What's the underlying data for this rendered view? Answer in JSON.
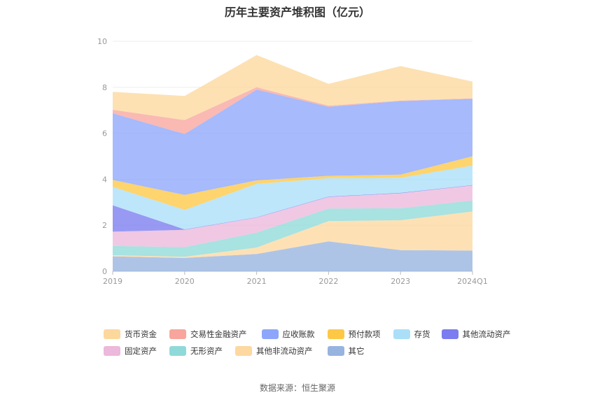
{
  "chart_data": {
    "type": "area",
    "stacked": true,
    "title": "历年主要资产堆积图（亿元）",
    "categories": [
      "2019",
      "2020",
      "2021",
      "2022",
      "2023",
      "2024Q1"
    ],
    "ylim": [
      0,
      10
    ],
    "yticks": [
      "0",
      "2",
      "4",
      "6",
      "8",
      "10"
    ],
    "grid": true,
    "legend_position": "bottom",
    "series": [
      {
        "name": "其它",
        "color": "#97b4e0",
        "values": [
          0.65,
          0.58,
          0.75,
          1.3,
          0.92,
          0.9
        ]
      },
      {
        "name": "其他非流动资产",
        "color": "#fdd8a0",
        "values": [
          0.05,
          0.05,
          0.28,
          0.88,
          1.3,
          1.7
        ]
      },
      {
        "name": "无形资产",
        "color": "#8fdad9",
        "values": [
          0.4,
          0.42,
          0.65,
          0.55,
          0.52,
          0.48
        ]
      },
      {
        "name": "固定资产",
        "color": "#ecb8dc",
        "values": [
          0.62,
          0.75,
          0.65,
          0.5,
          0.65,
          0.65
        ]
      },
      {
        "name": "其他流动资产",
        "color": "#7b7cef",
        "values": [
          1.15,
          0.02,
          0.02,
          0.02,
          0.02,
          0.02
        ]
      },
      {
        "name": "存货",
        "color": "#abdff8",
        "values": [
          0.8,
          0.85,
          1.45,
          0.8,
          0.65,
          0.85
        ]
      },
      {
        "name": "预付款项",
        "color": "#fdc845",
        "values": [
          0.3,
          0.65,
          0.15,
          0.1,
          0.14,
          0.4
        ]
      },
      {
        "name": "应收账款",
        "color": "#8da6fb",
        "values": [
          2.9,
          2.65,
          3.95,
          3.0,
          3.2,
          2.5
        ]
      },
      {
        "name": "交易性金融资产",
        "color": "#f8a59d",
        "values": [
          0.15,
          0.6,
          0.1,
          0.05,
          0.02,
          0.02
        ]
      },
      {
        "name": "货币资金",
        "color": "#fdd89d",
        "values": [
          0.78,
          1.05,
          1.4,
          0.95,
          1.5,
          0.73
        ]
      }
    ]
  },
  "legend_order": [
    "货币资金",
    "交易性金融资产",
    "应收账款",
    "预付款项",
    "存货",
    "其他流动资产",
    "固定资产",
    "无形资产",
    "其他非流动资产",
    "其它"
  ],
  "source": "数据来源：恒生聚源"
}
